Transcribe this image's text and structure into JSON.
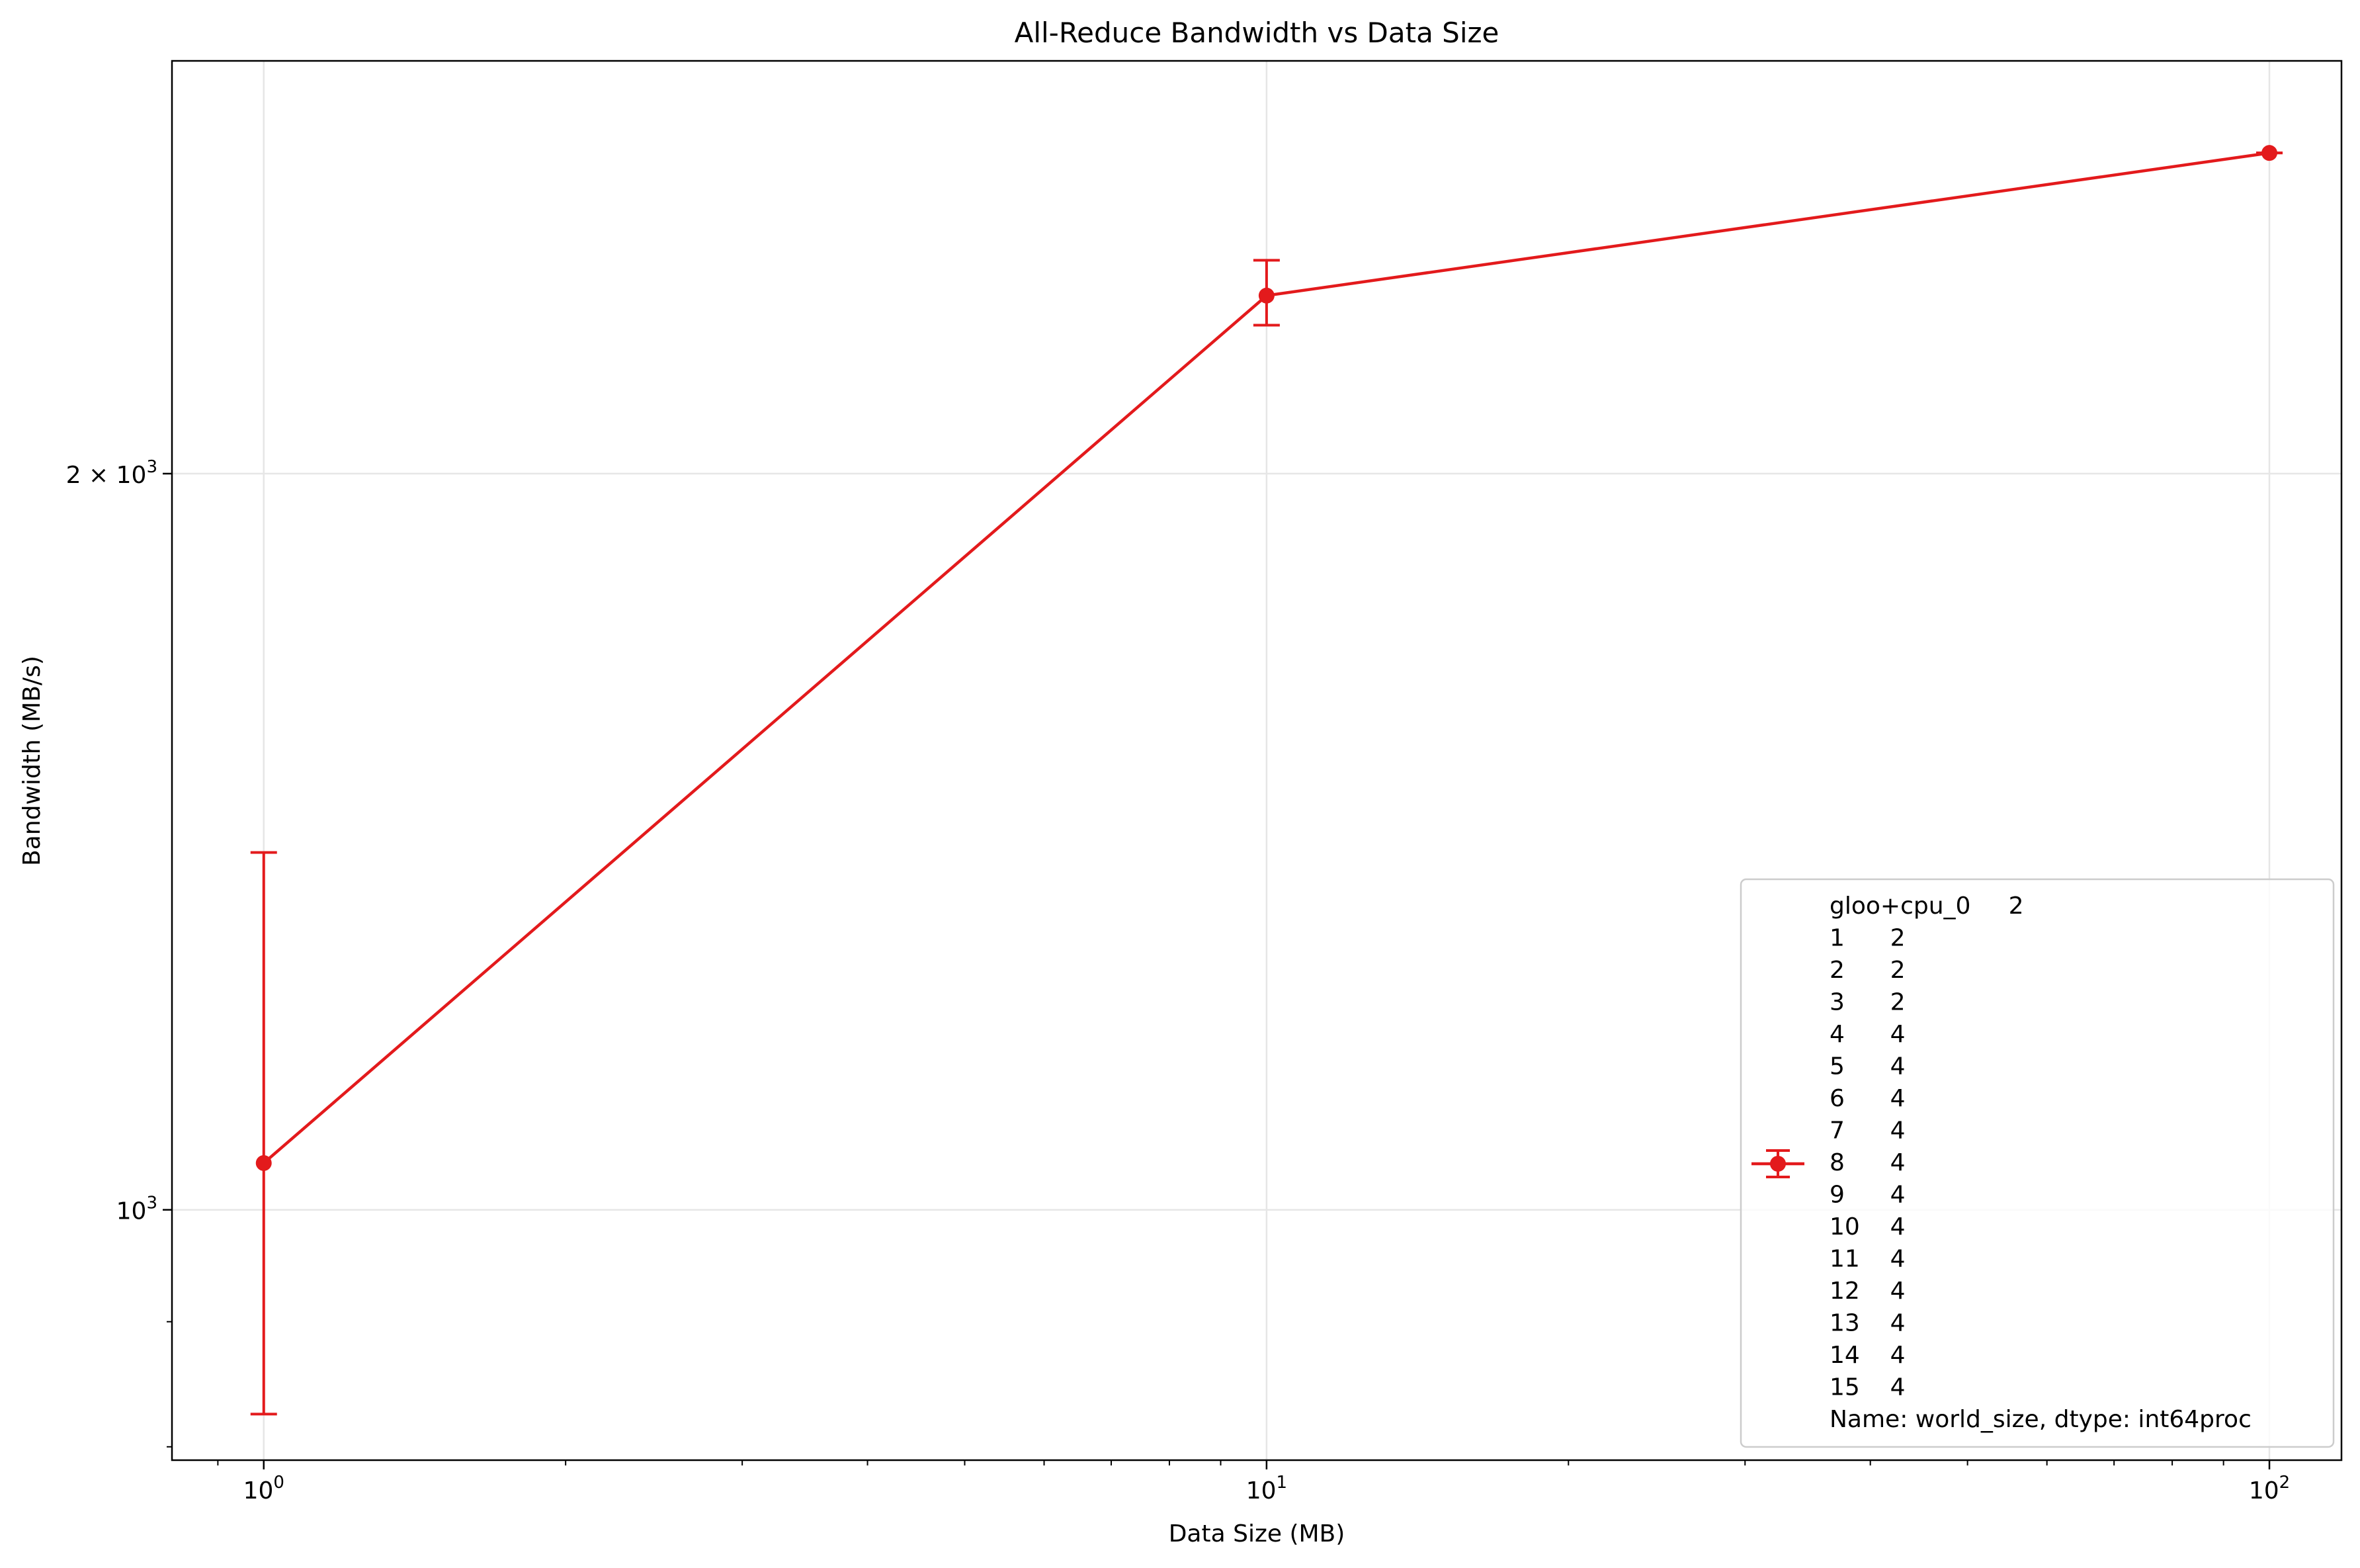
{
  "chart_data": {
    "type": "line",
    "title": "All-Reduce Bandwidth vs Data Size",
    "xlabel": "Data Size (MB)",
    "ylabel": "Bandwidth (MB/s)",
    "x_scale": "log",
    "y_scale": "log",
    "xlim": [
      0.81,
      118
    ],
    "ylim": [
      790,
      2950
    ],
    "grid": true,
    "x_ticks": [
      {
        "value": 1,
        "base": "10",
        "exp": "0"
      },
      {
        "value": 10,
        "base": "10",
        "exp": "1"
      },
      {
        "value": 100,
        "base": "10",
        "exp": "2"
      }
    ],
    "y_ticks": [
      {
        "value": 1000,
        "prefix": "",
        "base": "10",
        "exp": "3"
      },
      {
        "value": 2000,
        "prefix": "2 × ",
        "base": "10",
        "exp": "3"
      }
    ],
    "series": [
      {
        "name": "gloo+cpu_0     2\n1      2\n2      2\n3      2\n4      4\n5      4\n6      4\n7      4\n8      4\n9      4\n10    4\n11    4\n12    4\n13    4\n14    4\n15    4\nName: world_size, dtype: int64proc",
        "color": "#e31a1c",
        "x": [
          1,
          10,
          100
        ],
        "y": [
          1045,
          2365,
          2705
        ],
        "err_low": [
          825,
          2300,
          2705
        ],
        "err_high": [
          1400,
          2445,
          2705
        ]
      }
    ],
    "legend": {
      "position": "lower right",
      "lines": [
        "gloo+cpu_0     2",
        "1      2",
        "2      2",
        "3      2",
        "4      4",
        "5      4",
        "6      4",
        "7      4",
        "8      4",
        "9      4",
        "10    4",
        "11    4",
        "12    4",
        "13    4",
        "14    4",
        "15    4",
        "Name: world_size, dtype: int64proc"
      ]
    }
  }
}
